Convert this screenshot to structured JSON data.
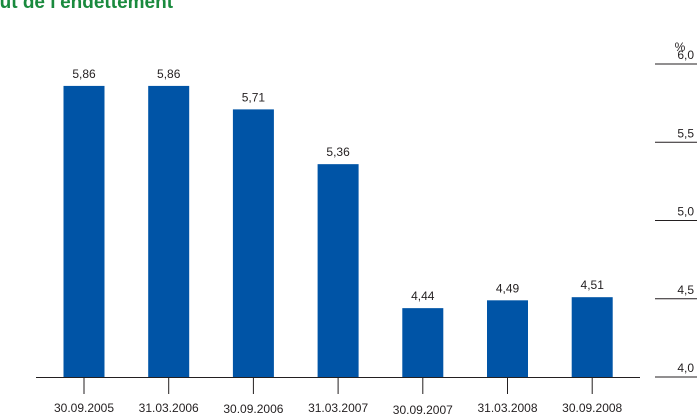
{
  "chart_data": {
    "type": "bar",
    "title": "oût de l'endettement",
    "categories": [
      "30.09.2005",
      "31.03.2006",
      "30.09.2006",
      "31.03.2007",
      "30.09.2007",
      "31.03.2008",
      "30.09.2008"
    ],
    "values": [
      5.86,
      5.86,
      5.71,
      5.36,
      4.44,
      4.49,
      4.51
    ],
    "value_labels": [
      "5,86",
      "5,86",
      "5,71",
      "5,36",
      "4,44",
      "4,49",
      "4,51"
    ],
    "ylabel": "%",
    "ylim": [
      4.0,
      6.0
    ],
    "yticks": [
      6.0,
      5.5,
      5.0,
      4.5,
      4.0
    ],
    "ytick_labels": [
      "6,0",
      "5,5",
      "5,0",
      "4,5",
      "4,0"
    ],
    "y_axis_position": "right",
    "grid": false,
    "colors": {
      "bar": "#0054a6",
      "title": "#1a8a3e",
      "text": "#231f20"
    }
  }
}
